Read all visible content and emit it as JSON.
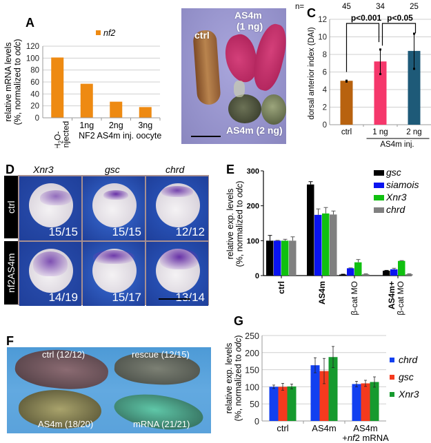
{
  "panels": {
    "A": {
      "label": "A"
    },
    "B": {
      "label": "B",
      "labels": {
        "ctrl": "ctrl",
        "as4m_1": "AS4m",
        "as4m_1_dose": "(1 ng)",
        "as4m_2": "AS4m (2 ng)"
      }
    },
    "C": {
      "label": "C"
    },
    "D": {
      "label": "D",
      "columns": [
        "Xnr3",
        "gsc",
        "chrd"
      ],
      "rows": [
        "ctrl",
        "nf2AS4m"
      ],
      "counts": [
        [
          "15/15",
          "15/15",
          "12/12"
        ],
        [
          "14/19",
          "15/17",
          "13/14"
        ]
      ]
    },
    "E": {
      "label": "E"
    },
    "F": {
      "label": "F",
      "labels": {
        "ctrl": "ctrl (12/12)",
        "rescue": "rescue (12/15)",
        "as4m": "AS4m (18/20)",
        "mrna": "mRNA (21/21)"
      }
    },
    "G": {
      "label": "G"
    }
  },
  "chart_data": [
    {
      "id": "A",
      "type": "bar",
      "title": "",
      "legend": [
        "nf2"
      ],
      "legend_position": "top",
      "ylabel": "relative mRNA levels (%, normalized to odc)",
      "ylabel_line1": "relative mRNA levels",
      "ylabel_line2": "(%, normalized to ",
      "ylabel_italic": "odc",
      "ylabel_end": ")",
      "xlabel": "NF2 AS4m inj. oocyte",
      "categories": [
        "H2O-injected",
        "1ng",
        "2ng",
        "3ng"
      ],
      "values": [
        101,
        57,
        27,
        18
      ],
      "ylim": [
        0,
        120
      ],
      "yticks": [
        0,
        20,
        40,
        60,
        80,
        100,
        120
      ],
      "grid": true,
      "color": "#EE8A12"
    },
    {
      "id": "C",
      "type": "bar",
      "ylabel": "dorsal anterior index (DAI)",
      "categories": [
        "ctrl",
        "1 ng",
        "2 ng"
      ],
      "group_label": "AS4m inj.",
      "values": [
        5.0,
        7.2,
        8.4
      ],
      "errors": [
        0.05,
        1.4,
        2.0
      ],
      "n_prefix": "n=",
      "n": [
        "45",
        "34",
        "25"
      ],
      "colors": [
        "#B8620F",
        "#F5376B",
        "#1E5A78"
      ],
      "ylim": [
        0,
        12
      ],
      "yticks": [
        0,
        2,
        4,
        6,
        8,
        10,
        12
      ],
      "grid": true,
      "annotations": [
        {
          "text": "p<0.001",
          "from": "ctrl",
          "to": "1 ng"
        },
        {
          "text": "p<0.05",
          "from": "1 ng",
          "to": "2 ng"
        }
      ]
    },
    {
      "id": "E",
      "type": "bar",
      "ylabel_line1": "relative exp. levels",
      "ylabel_line2": "(%, normalized to ",
      "ylabel_italic": "odc",
      "ylabel_end": ")",
      "categories": [
        "ctrl",
        "AS4m",
        "β-cat MO",
        "AS4m+ β-cat MO"
      ],
      "category_lines": [
        [
          "ctrl"
        ],
        [
          "AS4m"
        ],
        [
          "β-cat MO"
        ],
        [
          "AS4m+",
          "β-cat MO"
        ]
      ],
      "series": [
        {
          "name": "gsc",
          "color": "#000000",
          "values": [
            100,
            261,
            3,
            14
          ],
          "errors": [
            15,
            8,
            1,
            1
          ]
        },
        {
          "name": "siamois",
          "color": "#0A14F0",
          "values": [
            100,
            174,
            21,
            18
          ],
          "errors": [
            1,
            17,
            1,
            3
          ]
        },
        {
          "name": "Xnr3",
          "color": "#10C010",
          "values": [
            100,
            178,
            38,
            42
          ],
          "errors": [
            4,
            17,
            8,
            1
          ]
        },
        {
          "name": "chrd",
          "color": "#808080",
          "values": [
            100,
            175,
            4,
            4
          ],
          "errors": [
            11,
            10,
            1,
            1
          ]
        }
      ],
      "ylim": [
        0,
        300
      ],
      "yticks": [
        0,
        100,
        200,
        300
      ],
      "grid": false,
      "legend_position": "top-right"
    },
    {
      "id": "G",
      "type": "bar",
      "ylabel_line1": "relative exp. levels",
      "ylabel_line2": "(%, normalized to ",
      "ylabel_italic": "odc",
      "ylabel_end": ")",
      "categories": [
        "ctrl",
        "AS4m",
        "AS4m +nf2 mRNA"
      ],
      "series": [
        {
          "name": "chrd",
          "color": "#1240F0",
          "values": [
            100,
            163,
            108
          ],
          "errors": [
            5,
            22,
            8
          ]
        },
        {
          "name": "gsc",
          "color": "#F53A1E",
          "values": [
            100,
            146,
            110
          ],
          "errors": [
            10,
            37,
            9
          ]
        },
        {
          "name": "Xnr3",
          "color": "#169A2E",
          "values": [
            101,
            187,
            114
          ],
          "errors": [
            7,
            31,
            15
          ]
        }
      ],
      "ylim": [
        0,
        250
      ],
      "yticks": [
        0,
        50,
        100,
        150,
        200,
        250
      ],
      "grid": true,
      "legend_position": "right"
    }
  ]
}
